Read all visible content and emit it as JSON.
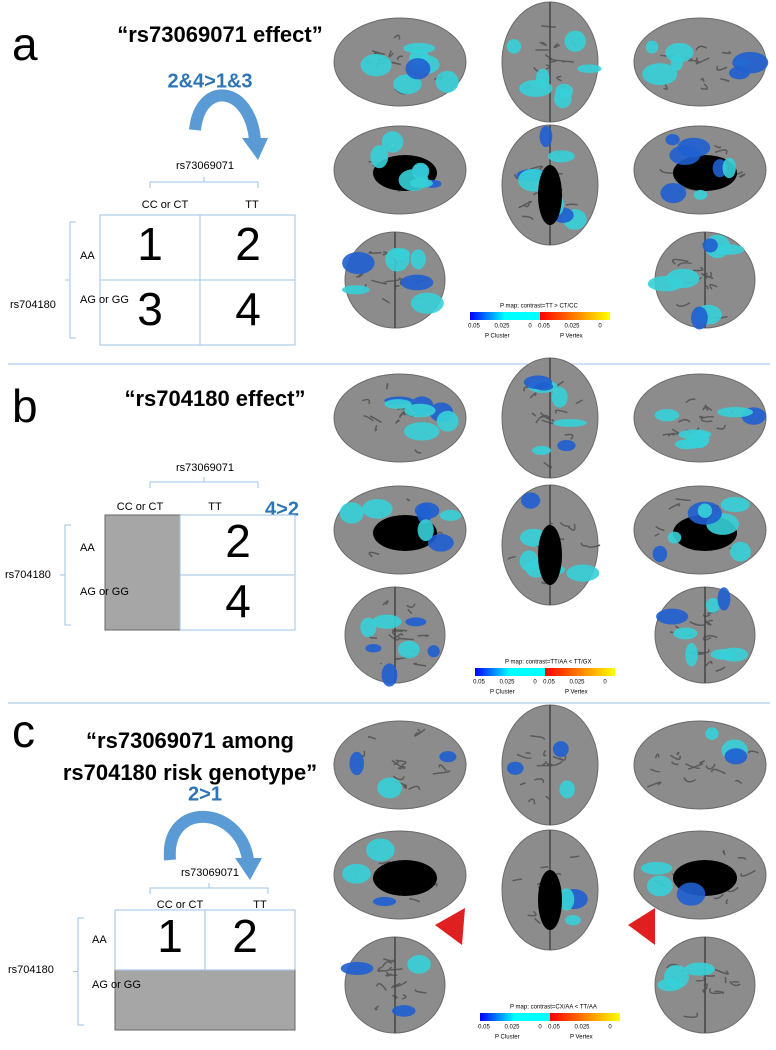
{
  "panels": [
    {
      "letter": "a",
      "title": [
        "“rs73069071 effect”"
      ],
      "comparison": "2&4>1&3",
      "column_gene": "rs73069071",
      "columns": [
        "CC or CT",
        "TT"
      ],
      "row_gene": "rs704180",
      "rows": [
        "AA",
        "AG or GG"
      ],
      "cells": [
        [
          "1",
          "2"
        ],
        [
          "3",
          "4"
        ]
      ],
      "colorbar": {
        "title": "P map: contrast=TT > CT/CC",
        "cluster_ticks": [
          "0.05",
          "0.025",
          "0"
        ],
        "vertex_ticks": [
          "0.05",
          "0.025",
          "0"
        ],
        "cluster_label": "P Cluster",
        "vertex_label": "P Vertex"
      }
    },
    {
      "letter": "b",
      "title": [
        "“rs704180 effect”"
      ],
      "comparison": "4>2",
      "column_gene": "rs73069071",
      "columns": [
        "CC or CT",
        "TT"
      ],
      "row_gene": "rs704180",
      "rows": [
        "AA",
        "AG or GG"
      ],
      "cells": [
        [
          null,
          "2"
        ],
        [
          null,
          "4"
        ]
      ],
      "colorbar": {
        "title": "P map: contrast=TT/AA < TT/GX",
        "cluster_ticks": [
          "0.05",
          "0.025",
          "0"
        ],
        "vertex_ticks": [
          "0.05",
          "0.025",
          "0"
        ],
        "cluster_label": "P Cluster",
        "vertex_label": "P Vertex"
      }
    },
    {
      "letter": "c",
      "title": [
        "“rs73069071 among",
        "rs704180 risk genotype”"
      ],
      "comparison": "2>1",
      "column_gene": "rs73069071",
      "columns": [
        "CC or CT",
        "TT"
      ],
      "row_gene": "rs704180",
      "rows": [
        "AA",
        "AG or GG"
      ],
      "cells": [
        [
          "1",
          "2"
        ],
        [
          null,
          null
        ]
      ],
      "colorbar": {
        "title": "P map: contrast=CX/AA < TT/AA",
        "cluster_ticks": [
          "0.05",
          "0.025",
          "0"
        ],
        "vertex_ticks": [
          "0.05",
          "0.025",
          "0"
        ],
        "cluster_label": "P Cluster",
        "vertex_label": "P Vertex"
      }
    }
  ]
}
